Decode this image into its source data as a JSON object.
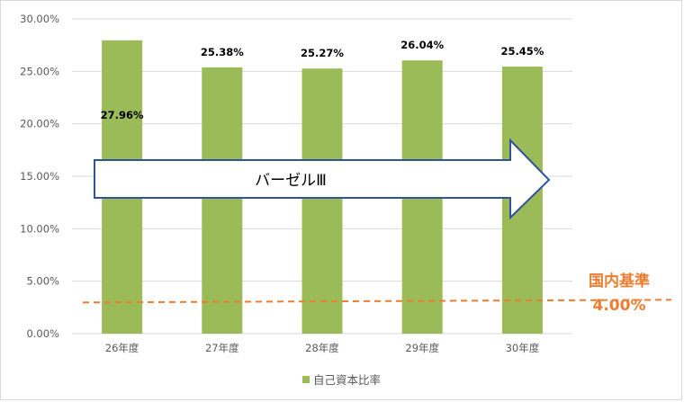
{
  "chart_data": {
    "type": "bar",
    "categories": [
      "26年度",
      "27年度",
      "28年度",
      "29年度",
      "30年度"
    ],
    "series": [
      {
        "name": "自己資本比率",
        "values": [
          27.96,
          25.38,
          25.27,
          26.04,
          25.45
        ],
        "color": "#9bbb59"
      }
    ],
    "data_labels": [
      "27.96%",
      "25.38%",
      "25.27%",
      "26.04%",
      "25.45%"
    ],
    "y_ticks": [
      "0.00%",
      "5.00%",
      "10.00%",
      "15.00%",
      "20.00%",
      "25.00%",
      "30.00%"
    ],
    "ylim": [
      0,
      30
    ],
    "grid": true,
    "legend_position": "bottom",
    "annotations": {
      "arrow_text": "バーゼルⅢ",
      "reference_line": {
        "value": 4.0,
        "style": "dashed",
        "color": "#ed7d31"
      },
      "reference_label_line1": "国内基準",
      "reference_label_line2": "4.00%"
    }
  }
}
